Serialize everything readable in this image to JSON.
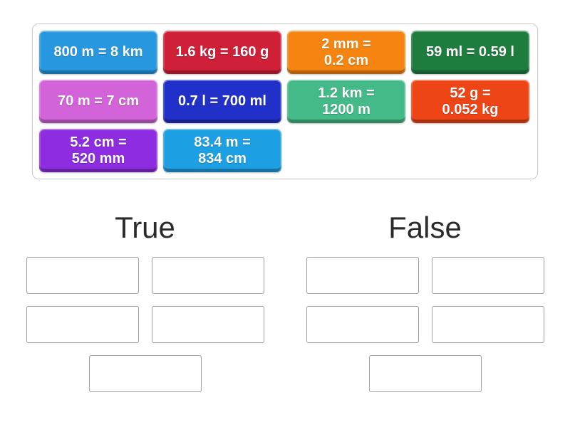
{
  "tray": {
    "text_color": "#ffffff",
    "border_color": "#c9c9c9",
    "tiles": [
      {
        "lines": [
          "800 m = 8 km"
        ],
        "color": "#2798df"
      },
      {
        "lines": [
          "1.6 kg = 160 g"
        ],
        "color": "#cf2038"
      },
      {
        "lines": [
          "2 mm =",
          "0.2 cm"
        ],
        "color": "#f58510"
      },
      {
        "lines": [
          "59 ml = 0.59 l"
        ],
        "color": "#1e7c3e"
      },
      {
        "lines": [
          "70 m = 7 cm"
        ],
        "color": "#d263d8"
      },
      {
        "lines": [
          "0.7 l = 700 ml"
        ],
        "color": "#2130c8"
      },
      {
        "lines": [
          "1.2 km =",
          "1200 m"
        ],
        "color": "#43ba87"
      },
      {
        "lines": [
          "52 g =",
          "0.052 kg"
        ],
        "color": "#ee4517"
      },
      {
        "lines": [
          "5.2 cm =",
          "520 mm"
        ],
        "color": "#8e2ce2"
      },
      {
        "lines": [
          "83.4 m =",
          "834 cm"
        ],
        "color": "#1d9fe4"
      }
    ]
  },
  "groups": [
    {
      "label": "True",
      "slot_count": 5
    },
    {
      "label": "False",
      "slot_count": 5
    }
  ],
  "slot": {
    "border_color": "#a0a0a0"
  }
}
